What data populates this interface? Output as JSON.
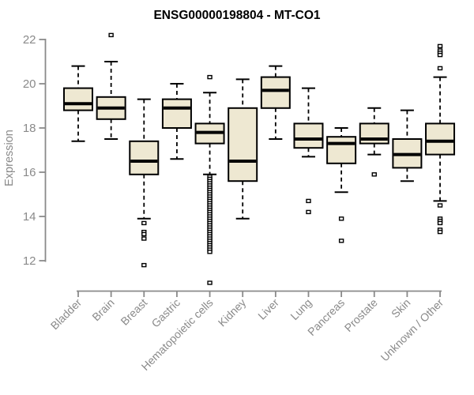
{
  "page": {
    "background": "#ffffff"
  },
  "chart_data": {
    "type": "boxplot",
    "title": "ENSG00000198804 - MT-CO1",
    "xlabel": "",
    "ylabel": "Expression",
    "ylim": [
      12,
      22
    ],
    "yticks": [
      12,
      14,
      16,
      18,
      20,
      22
    ],
    "grid": false,
    "legend": "none",
    "colors": {
      "box_fill": "#EEE8D2",
      "box_stroke": "#000000",
      "median": "#000000",
      "whisker": "#000000",
      "outlier_stroke": "#000000",
      "axis": "#8a8a8a",
      "title": "#000000"
    },
    "categories": [
      "Bladder",
      "Brain",
      "Breast",
      "Gastric",
      "Hematopoietic cells",
      "Kidney",
      "Liver",
      "Lung",
      "Pancreas",
      "Prostate",
      "Skin",
      "Unknown / Other"
    ],
    "series": [
      {
        "name": "Bladder",
        "low": 17.4,
        "q1": 18.8,
        "median": 19.1,
        "q3": 19.8,
        "high": 20.8,
        "outliers": []
      },
      {
        "name": "Brain",
        "low": 17.5,
        "q1": 18.4,
        "median": 18.9,
        "q3": 19.4,
        "high": 21.0,
        "outliers": [
          22.2
        ]
      },
      {
        "name": "Breast",
        "low": 13.9,
        "q1": 15.9,
        "median": 16.5,
        "q3": 17.4,
        "high": 19.3,
        "outliers": [
          13.7,
          13.3,
          13.2,
          13.0,
          11.8
        ]
      },
      {
        "name": "Gastric",
        "low": 16.6,
        "q1": 18.0,
        "median": 18.9,
        "q3": 19.3,
        "high": 20.0,
        "outliers": []
      },
      {
        "name": "Hematopoietic cells",
        "low": 15.9,
        "q1": 17.3,
        "median": 17.8,
        "q3": 18.2,
        "high": 19.6,
        "outliers": [
          20.3,
          15.8,
          15.7,
          15.6,
          15.5,
          15.4,
          15.3,
          15.2,
          15.1,
          15.0,
          14.9,
          14.8,
          14.7,
          14.6,
          14.5,
          14.4,
          14.3,
          14.2,
          14.1,
          14.0,
          13.9,
          13.8,
          13.7,
          13.6,
          13.5,
          13.4,
          13.3,
          13.2,
          13.1,
          13.0,
          12.9,
          12.8,
          12.7,
          12.6,
          12.5,
          12.4,
          11.0
        ]
      },
      {
        "name": "Kidney",
        "low": 13.9,
        "q1": 15.6,
        "median": 16.5,
        "q3": 18.9,
        "high": 20.2,
        "outliers": []
      },
      {
        "name": "Liver",
        "low": 17.5,
        "q1": 18.9,
        "median": 19.7,
        "q3": 20.3,
        "high": 20.8,
        "outliers": []
      },
      {
        "name": "Lung",
        "low": 16.7,
        "q1": 17.1,
        "median": 17.5,
        "q3": 18.2,
        "high": 19.8,
        "outliers": [
          14.7,
          14.2
        ]
      },
      {
        "name": "Pancreas",
        "low": 15.1,
        "q1": 16.4,
        "median": 17.3,
        "q3": 17.6,
        "high": 18.0,
        "outliers": [
          13.9,
          12.9
        ]
      },
      {
        "name": "Prostate",
        "low": 16.8,
        "q1": 17.3,
        "median": 17.5,
        "q3": 18.2,
        "high": 18.9,
        "outliers": [
          15.9
        ]
      },
      {
        "name": "Skin",
        "low": 15.6,
        "q1": 16.2,
        "median": 16.8,
        "q3": 17.5,
        "high": 18.8,
        "outliers": []
      },
      {
        "name": "Unknown / Other",
        "low": 14.7,
        "q1": 16.8,
        "median": 17.4,
        "q3": 18.2,
        "high": 20.3,
        "outliers": [
          21.7,
          21.5,
          21.4,
          21.3,
          20.7,
          14.5,
          13.9,
          13.8,
          13.7,
          13.4,
          13.3
        ]
      }
    ]
  }
}
